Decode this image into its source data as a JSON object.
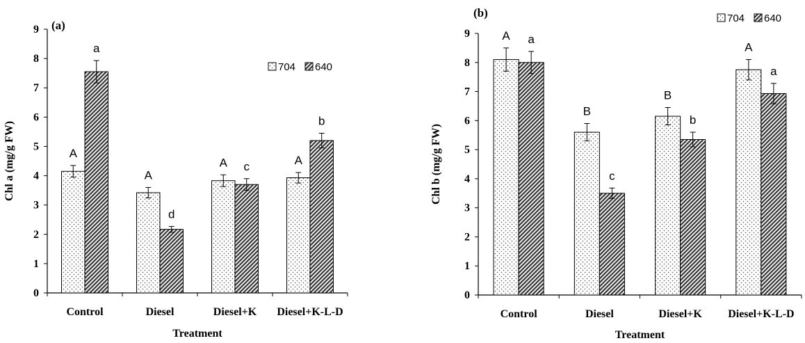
{
  "chart_data": [
    {
      "type": "bar",
      "panel_label": "(a)",
      "categories": [
        "Control",
        "Diesel",
        "Diesel+K",
        "Diesel+K-L-D"
      ],
      "xlabel": "Treatment",
      "ylabel": "Chl a (mg/g FW)",
      "ylim": [
        0,
        9
      ],
      "yticks": [
        "0",
        "1",
        "2",
        "3",
        "4",
        "5",
        "6",
        "7",
        "8",
        "9"
      ],
      "grid": false,
      "legend_position": "top-right",
      "series": [
        {
          "name": "704",
          "values": [
            4.15,
            3.42,
            3.83,
            3.93
          ],
          "errors": [
            0.2,
            0.18,
            0.2,
            0.18
          ],
          "letters": [
            "A",
            "A",
            "A",
            "A"
          ],
          "pattern": "dots"
        },
        {
          "name": "640",
          "values": [
            7.55,
            2.17,
            3.7,
            5.2
          ],
          "errors": [
            0.38,
            0.1,
            0.2,
            0.25
          ],
          "letters": [
            "a",
            "d",
            "c",
            "b"
          ],
          "pattern": "hatch"
        }
      ]
    },
    {
      "type": "bar",
      "panel_label": "(b)",
      "categories": [
        "Control",
        "Diesel",
        "Diesel+K",
        "Diesel+K-L-D"
      ],
      "xlabel": "Treatment",
      "ylabel": "Chl b (mg/g FW)",
      "ylim": [
        0,
        9
      ],
      "yticks": [
        "0",
        "1",
        "2",
        "3",
        "4",
        "5",
        "6",
        "7",
        "8",
        "9"
      ],
      "grid": false,
      "legend_position": "top-right",
      "series": [
        {
          "name": "704",
          "values": [
            8.1,
            5.6,
            6.15,
            7.75
          ],
          "errors": [
            0.4,
            0.3,
            0.3,
            0.35
          ],
          "letters": [
            "A",
            "B",
            "B",
            "A"
          ],
          "pattern": "dots"
        },
        {
          "name": "640",
          "values": [
            8.0,
            3.5,
            5.35,
            6.93
          ],
          "errors": [
            0.38,
            0.18,
            0.25,
            0.35
          ],
          "letters": [
            "a",
            "c",
            "b",
            "a"
          ],
          "pattern": "hatch"
        }
      ]
    }
  ]
}
